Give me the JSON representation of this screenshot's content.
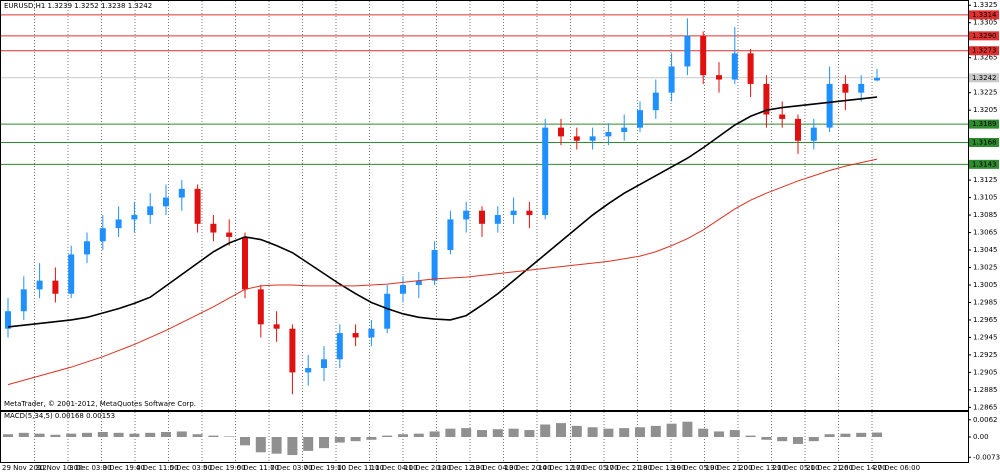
{
  "chart_data": {
    "type": "candlestick",
    "header": "EURUSD,H1  1.3239 1.3252 1.3238 1.3242",
    "footer": "MetaTrader, © 2001-2012, MetaQuotes Software Corp.",
    "up_color": "#1e90ff",
    "down_color": "#e01010",
    "ohlc": [
      [
        1.2955,
        1.299,
        1.2945,
        1.2975
      ],
      [
        1.2975,
        1.3015,
        1.2965,
        1.3
      ],
      [
        1.3,
        1.303,
        1.299,
        1.301
      ],
      [
        1.301,
        1.3025,
        1.2985,
        1.2995
      ],
      [
        1.2995,
        1.305,
        1.299,
        1.304
      ],
      [
        1.304,
        1.3065,
        1.303,
        1.3055
      ],
      [
        1.3055,
        1.3085,
        1.3045,
        1.307
      ],
      [
        1.307,
        1.3095,
        1.306,
        1.308
      ],
      [
        1.308,
        1.31,
        1.3065,
        1.3085
      ],
      [
        1.3085,
        1.311,
        1.3075,
        1.3095
      ],
      [
        1.3095,
        1.312,
        1.3085,
        1.3105
      ],
      [
        1.3105,
        1.3125,
        1.309,
        1.3115
      ],
      [
        1.3115,
        1.312,
        1.3065,
        1.3075
      ],
      [
        1.3075,
        1.3085,
        1.3055,
        1.3065
      ],
      [
        1.3065,
        1.308,
        1.305,
        1.306
      ],
      [
        1.306,
        1.3065,
        1.299,
        1.3
      ],
      [
        1.3,
        1.3005,
        1.2945,
        1.296
      ],
      [
        1.296,
        1.2975,
        1.294,
        1.2955
      ],
      [
        1.2955,
        1.296,
        1.288,
        1.2905
      ],
      [
        1.2905,
        1.2925,
        1.289,
        1.291
      ],
      [
        1.291,
        1.2935,
        1.2895,
        1.292
      ],
      [
        1.292,
        1.296,
        1.291,
        1.295
      ],
      [
        1.295,
        1.296,
        1.2935,
        1.2945
      ],
      [
        1.2945,
        1.2965,
        1.2935,
        1.2955
      ],
      [
        1.2955,
        1.3005,
        1.295,
        1.2995
      ],
      [
        1.2995,
        1.3015,
        1.2985,
        1.3005
      ],
      [
        1.3005,
        1.302,
        1.299,
        1.301
      ],
      [
        1.301,
        1.3055,
        1.3005,
        1.3045
      ],
      [
        1.3045,
        1.309,
        1.304,
        1.308
      ],
      [
        1.308,
        1.31,
        1.3065,
        1.309
      ],
      [
        1.309,
        1.3095,
        1.306,
        1.3075
      ],
      [
        1.3075,
        1.3095,
        1.3065,
        1.3085
      ],
      [
        1.3085,
        1.3105,
        1.3075,
        1.309
      ],
      [
        1.309,
        1.31,
        1.307,
        1.3085
      ],
      [
        1.3085,
        1.3195,
        1.308,
        1.3185
      ],
      [
        1.3185,
        1.3195,
        1.3165,
        1.3175
      ],
      [
        1.3175,
        1.3185,
        1.316,
        1.317
      ],
      [
        1.317,
        1.3185,
        1.316,
        1.3175
      ],
      [
        1.3175,
        1.319,
        1.3165,
        1.318
      ],
      [
        1.318,
        1.32,
        1.317,
        1.3185
      ],
      [
        1.3185,
        1.3215,
        1.318,
        1.3205
      ],
      [
        1.3205,
        1.324,
        1.3195,
        1.3225
      ],
      [
        1.3225,
        1.327,
        1.3215,
        1.3255
      ],
      [
        1.3255,
        1.331,
        1.3245,
        1.329
      ],
      [
        1.329,
        1.3295,
        1.3235,
        1.3245
      ],
      [
        1.3245,
        1.326,
        1.3225,
        1.324
      ],
      [
        1.324,
        1.33,
        1.3235,
        1.327
      ],
      [
        1.327,
        1.3275,
        1.322,
        1.3235
      ],
      [
        1.3235,
        1.3245,
        1.3185,
        1.32
      ],
      [
        1.32,
        1.3215,
        1.3185,
        1.3195
      ],
      [
        1.3195,
        1.32,
        1.3155,
        1.317
      ],
      [
        1.317,
        1.3195,
        1.316,
        1.3185
      ],
      [
        1.3185,
        1.3255,
        1.318,
        1.3235
      ],
      [
        1.3235,
        1.3245,
        1.3205,
        1.3225
      ],
      [
        1.3225,
        1.3245,
        1.3215,
        1.3235
      ],
      [
        1.3239,
        1.3252,
        1.3238,
        1.3242
      ]
    ],
    "moving_averages": [
      {
        "color": "#000000",
        "values": [
          1.2957,
          1.2959,
          1.2961,
          1.2963,
          1.2965,
          1.2968,
          1.2973,
          1.2978,
          1.2984,
          1.2991,
          1.3004,
          1.3017,
          1.303,
          1.3043,
          1.3053,
          1.306,
          1.3057,
          1.305,
          1.3042,
          1.303,
          1.3018,
          1.3006,
          1.2995,
          1.2985,
          1.2978,
          1.2972,
          1.2968,
          1.2966,
          1.2965,
          1.297,
          1.2982,
          1.2995,
          1.301,
          1.3025,
          1.304,
          1.3055,
          1.307,
          1.3085,
          1.3098,
          1.311,
          1.312,
          1.313,
          1.314,
          1.315,
          1.3162,
          1.3175,
          1.3188,
          1.3198,
          1.3205,
          1.3208,
          1.321,
          1.3212,
          1.3214,
          1.3216,
          1.3218,
          1.322
        ]
      },
      {
        "color": "#e03020",
        "values": [
          1.2891,
          1.2896,
          1.2901,
          1.2906,
          1.2911,
          1.2917,
          1.2923,
          1.293,
          1.2937,
          1.2945,
          1.2953,
          1.2962,
          1.2971,
          1.298,
          1.299,
          1.3,
          1.3004,
          1.3005,
          1.3005,
          1.3004,
          1.3004,
          1.3004,
          1.3004,
          1.3005,
          1.3006,
          1.3008,
          1.301,
          1.3012,
          1.3013,
          1.3014,
          1.3016,
          1.3018,
          1.302,
          1.3022,
          1.3024,
          1.3026,
          1.3028,
          1.303,
          1.3032,
          1.3035,
          1.3038,
          1.3043,
          1.305,
          1.3058,
          1.3068,
          1.308,
          1.3092,
          1.3102,
          1.311,
          1.3117,
          1.3124,
          1.313,
          1.3136,
          1.3141,
          1.3145,
          1.3149
        ]
      }
    ],
    "levels": [
      {
        "value": 1.3314,
        "label": "1.3314",
        "color": "#e03030"
      },
      {
        "value": 1.329,
        "label": "1.3290",
        "color": "#e03030"
      },
      {
        "value": 1.3273,
        "label": "1.3273",
        "color": "#e03030"
      },
      {
        "value": 1.3189,
        "label": "1.3189",
        "color": "#2e8b2e"
      },
      {
        "value": 1.3168,
        "label": "1.3168",
        "color": "#2e8b2e"
      },
      {
        "value": 1.3143,
        "label": "1.3143",
        "color": "#2e8b2e"
      }
    ],
    "current_price": 1.3242,
    "ylim": [
      1.2862,
      1.3331
    ],
    "yticks": [
      1.3325,
      1.3305,
      1.3265,
      1.3225,
      1.3205,
      1.3125,
      1.3105,
      1.3085,
      1.3065,
      1.3045,
      1.3025,
      1.3005,
      1.2985,
      1.2965,
      1.2945,
      1.2925,
      1.2905,
      1.2885,
      1.2865
    ],
    "grid": true,
    "x_labels": [
      "29 Nov 2012",
      "30 Nov 10:00",
      "3 Dec 03:00",
      "3 Dec 19:00",
      "4 Dec 11:00",
      "5 Dec 03:00",
      "5 Dec 19:00",
      "6 Dec 11:00",
      "7 Dec 03:00",
      "7 Dec 19:00",
      "10 Dec 11:00",
      "11 Dec 04:00",
      "11 Dec 20:00",
      "12 Dec 12:00",
      "13 Dec 04:00",
      "13 Dec 20:00",
      "14 Dec 12:00",
      "17 Dec 05:00",
      "17 Dec 21:00",
      "18 Dec 13:00",
      "19 Dec 05:00",
      "19 Dec 21:00",
      "20 Dec 13:00",
      "21 Dec 05:00",
      "21 Dec 21:00",
      "26 Dec 14:00",
      "27 Dec 06:00"
    ],
    "indicator": {
      "type": "bar",
      "label": "MACD(5,34,5) 0.00168 0.00153",
      "color": "#909090",
      "values": [
        0.001,
        0.0015,
        0.0012,
        0.0008,
        0.0012,
        0.0015,
        0.0018,
        0.0015,
        0.0012,
        0.0015,
        0.0018,
        0.002,
        0.001,
        0.0005,
        0.0002,
        -0.003,
        -0.0055,
        -0.006,
        -0.0065,
        -0.005,
        -0.004,
        -0.002,
        -0.0015,
        -0.001,
        0.0005,
        0.001,
        0.0012,
        0.002,
        0.003,
        0.0032,
        0.0025,
        0.0028,
        0.003,
        0.0025,
        0.0045,
        0.005,
        0.004,
        0.0035,
        0.003,
        0.0032,
        0.0035,
        0.004,
        0.0048,
        0.0055,
        0.003,
        0.002,
        0.0025,
        0.0005,
        -0.001,
        -0.0015,
        -0.0025,
        -0.0015,
        0.001,
        0.0012,
        0.0015,
        0.0016
      ],
      "ylim": [
        -0.009,
        0.009
      ],
      "yticks": [
        0.0062,
        {
          "value": 0,
          "label": "0.00"
        },
        -0.0073
      ]
    }
  }
}
